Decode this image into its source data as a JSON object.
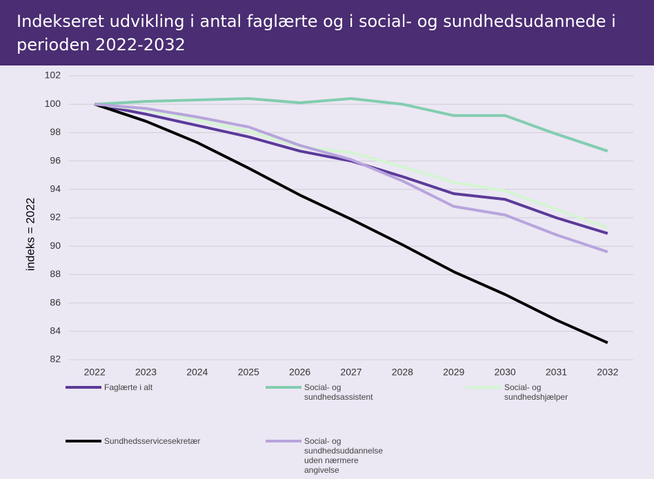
{
  "chart_data": {
    "type": "line",
    "title": "Indekseret udvikling i antal faglærte og i social- og sundhedsudannede i perioden 2022-2032",
    "ylabel": "indeks = 2022",
    "categories": [
      "2022",
      "2023",
      "2024",
      "2025",
      "2026",
      "2027",
      "2028",
      "2029",
      "2030",
      "2031",
      "2032"
    ],
    "series": [
      {
        "name": "Faglærte i alt",
        "color": "#5b3a99",
        "values": [
          100,
          99.3,
          98.5,
          97.7,
          96.7,
          96.0,
          94.9,
          93.7,
          93.3,
          92.0,
          90.9
        ]
      },
      {
        "name": "Social- og sundhedsassistent",
        "color": "#82cdb0",
        "values": [
          100,
          100.2,
          100.3,
          100.4,
          100.1,
          100.4,
          100.0,
          99.2,
          99.2,
          97.9,
          96.7
        ]
      },
      {
        "name": "Social- og sundhedshjælper",
        "color": "#d4f5d2",
        "values": [
          100,
          99.6,
          98.9,
          98.1,
          97.0,
          96.6,
          95.6,
          94.5,
          93.9,
          92.6,
          91.3
        ]
      },
      {
        "name": "Sundhedsservicesekretær",
        "color": "#000000",
        "values": [
          100,
          98.8,
          97.3,
          95.5,
          93.6,
          91.9,
          90.1,
          88.2,
          86.6,
          84.8,
          83.2
        ]
      },
      {
        "name": "Social- og sundhedsuddannelse uden nærmere angivelse",
        "color": "#b8a4dc",
        "values": [
          100,
          99.7,
          99.1,
          98.4,
          97.1,
          96.1,
          94.6,
          92.8,
          92.2,
          90.8,
          89.6
        ]
      }
    ],
    "ylim": [
      82,
      102
    ],
    "yticks": [
      82,
      84,
      86,
      88,
      90,
      92,
      94,
      96,
      98,
      100,
      102
    ],
    "grid": true
  }
}
